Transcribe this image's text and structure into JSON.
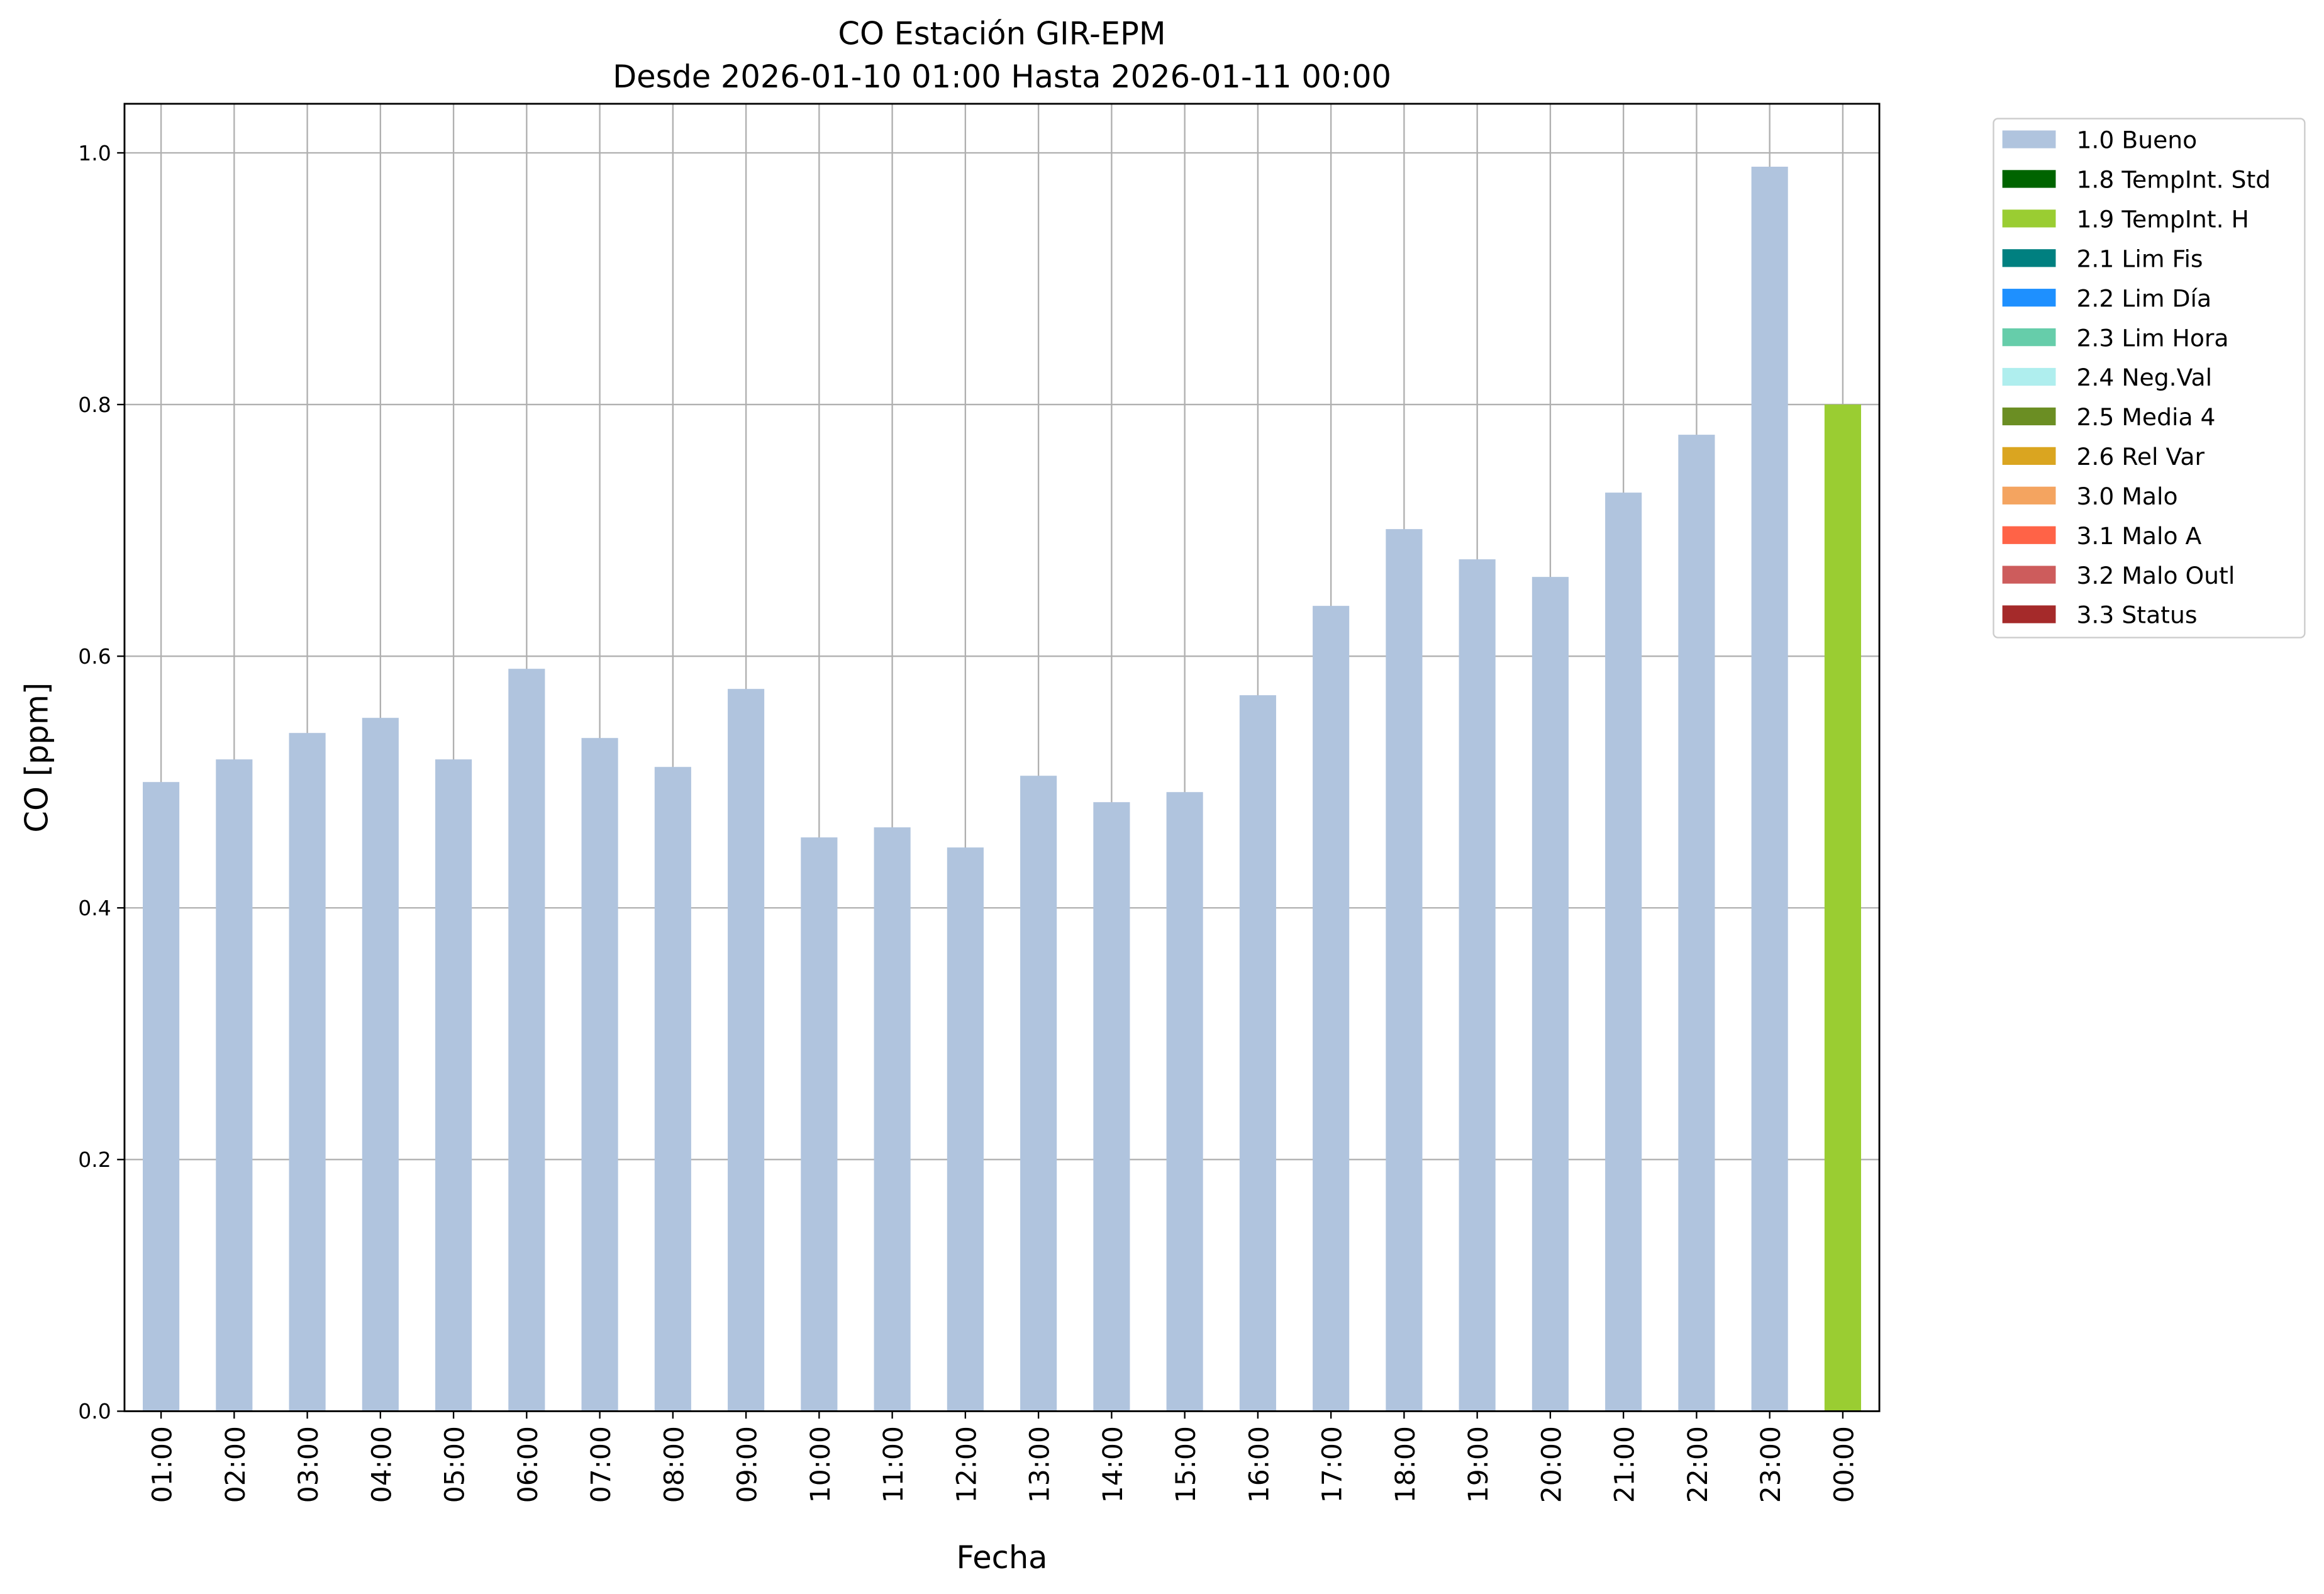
{
  "chart_data": {
    "type": "bar",
    "stacked": true,
    "title": "CO Estación GIR-EPM",
    "subtitle": "Desde 2026-01-10 01:00 Hasta 2026-01-11 00:00",
    "x_label": "Fecha",
    "y_label": "CO [ppm]",
    "categories": [
      "01:00",
      "02:00",
      "03:00",
      "04:00",
      "05:00",
      "06:00",
      "07:00",
      "08:00",
      "09:00",
      "10:00",
      "11:00",
      "12:00",
      "13:00",
      "14:00",
      "15:00",
      "16:00",
      "17:00",
      "18:00",
      "19:00",
      "20:00",
      "21:00",
      "22:00",
      "23:00",
      "00:00"
    ],
    "series": [
      {
        "name": "1.0 Bueno",
        "color": "#b0c4de",
        "values": [
          0.5,
          0.518,
          0.539,
          0.551,
          0.518,
          0.59,
          0.535,
          0.512,
          0.574,
          0.456,
          0.464,
          0.448,
          0.505,
          0.484,
          0.492,
          0.569,
          0.64,
          0.701,
          0.677,
          0.663,
          0.73,
          0.776,
          0.989,
          null
        ]
      },
      {
        "name": "1.8 TempInt. Std",
        "color": "#006400",
        "values": [
          null,
          null,
          null,
          null,
          null,
          null,
          null,
          null,
          null,
          null,
          null,
          null,
          null,
          null,
          null,
          null,
          null,
          null,
          null,
          null,
          null,
          null,
          null,
          null
        ]
      },
      {
        "name": "1.9 TempInt. H",
        "color": "#9acd32",
        "values": [
          null,
          null,
          null,
          null,
          null,
          null,
          null,
          null,
          null,
          null,
          null,
          null,
          null,
          null,
          null,
          null,
          null,
          null,
          null,
          null,
          null,
          null,
          null,
          0.8
        ]
      },
      {
        "name": "2.1 Lim Fis",
        "color": "#008080",
        "values": [
          null,
          null,
          null,
          null,
          null,
          null,
          null,
          null,
          null,
          null,
          null,
          null,
          null,
          null,
          null,
          null,
          null,
          null,
          null,
          null,
          null,
          null,
          null,
          null
        ]
      },
      {
        "name": "2.2 Lim Día",
        "color": "#1e90ff",
        "values": [
          null,
          null,
          null,
          null,
          null,
          null,
          null,
          null,
          null,
          null,
          null,
          null,
          null,
          null,
          null,
          null,
          null,
          null,
          null,
          null,
          null,
          null,
          null,
          null
        ]
      },
      {
        "name": "2.3 Lim Hora",
        "color": "#66cdaa",
        "values": [
          null,
          null,
          null,
          null,
          null,
          null,
          null,
          null,
          null,
          null,
          null,
          null,
          null,
          null,
          null,
          null,
          null,
          null,
          null,
          null,
          null,
          null,
          null,
          null
        ]
      },
      {
        "name": "2.4 Neg.Val",
        "color": "#afeeee",
        "values": [
          null,
          null,
          null,
          null,
          null,
          null,
          null,
          null,
          null,
          null,
          null,
          null,
          null,
          null,
          null,
          null,
          null,
          null,
          null,
          null,
          null,
          null,
          null,
          null
        ]
      },
      {
        "name": "2.5 Media 4",
        "color": "#6b8e23",
        "values": [
          null,
          null,
          null,
          null,
          null,
          null,
          null,
          null,
          null,
          null,
          null,
          null,
          null,
          null,
          null,
          null,
          null,
          null,
          null,
          null,
          null,
          null,
          null,
          null
        ]
      },
      {
        "name": "2.6 Rel Var",
        "color": "#daa520",
        "values": [
          null,
          null,
          null,
          null,
          null,
          null,
          null,
          null,
          null,
          null,
          null,
          null,
          null,
          null,
          null,
          null,
          null,
          null,
          null,
          null,
          null,
          null,
          null,
          null
        ]
      },
      {
        "name": "3.0 Malo",
        "color": "#f4a460",
        "values": [
          null,
          null,
          null,
          null,
          null,
          null,
          null,
          null,
          null,
          null,
          null,
          null,
          null,
          null,
          null,
          null,
          null,
          null,
          null,
          null,
          null,
          null,
          null,
          null
        ]
      },
      {
        "name": "3.1 Malo A",
        "color": "#ff6347",
        "values": [
          null,
          null,
          null,
          null,
          null,
          null,
          null,
          null,
          null,
          null,
          null,
          null,
          null,
          null,
          null,
          null,
          null,
          null,
          null,
          null,
          null,
          null,
          null,
          null
        ]
      },
      {
        "name": "3.2 Malo Outl",
        "color": "#cd5c5c",
        "values": [
          null,
          null,
          null,
          null,
          null,
          null,
          null,
          null,
          null,
          null,
          null,
          null,
          null,
          null,
          null,
          null,
          null,
          null,
          null,
          null,
          null,
          null,
          null,
          null
        ]
      },
      {
        "name": "3.3 Status",
        "color": "#a52a2a",
        "values": [
          null,
          null,
          null,
          null,
          null,
          null,
          null,
          null,
          null,
          null,
          null,
          null,
          null,
          null,
          null,
          null,
          null,
          null,
          null,
          null,
          null,
          null,
          null,
          null
        ]
      }
    ],
    "ylim": [
      0,
      1.039
    ],
    "yticks": [
      {
        "value": 0,
        "label": "0.0"
      },
      0.2,
      0.4,
      0.6,
      0.8,
      {
        "value": 1,
        "label": "1.0"
      }
    ],
    "grid": true,
    "legend": "outside right"
  }
}
